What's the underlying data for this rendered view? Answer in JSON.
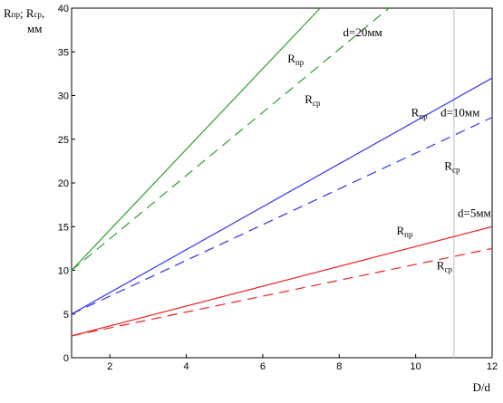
{
  "chart_data": {
    "type": "line",
    "ylabel_line1": "Rпр; Rср,",
    "ylabel_line2": "мм",
    "ylabel_parts": [
      {
        "text": "R",
        "sub": false
      },
      {
        "text": "пр",
        "sub": true
      },
      {
        "text": "; R",
        "sub": false
      },
      {
        "text": "ср",
        "sub": true
      },
      {
        "text": ",",
        "sub": false
      }
    ],
    "xlabel": "D/d",
    "xlim": [
      1,
      12
    ],
    "ylim": [
      0,
      40
    ],
    "xticks": [
      2,
      4,
      6,
      8,
      10,
      12
    ],
    "yticks": [
      0,
      5,
      10,
      15,
      20,
      25,
      30,
      35,
      40
    ],
    "grid": false,
    "reference_line_x": 11,
    "colors": {
      "green": "#2ca02c",
      "blue": "#3333ee",
      "red": "#ee2222",
      "reference": "#c8c8c8",
      "axis": "#000000"
    },
    "series": [
      {
        "group": "d=20мм",
        "kind": "пр",
        "color": "#2ca02c",
        "dash": false,
        "x": [
          1,
          7.5
        ],
        "y": [
          10,
          40
        ]
      },
      {
        "group": "d=20мм",
        "kind": "ср",
        "color": "#2ca02c",
        "dash": true,
        "x": [
          1,
          9.3
        ],
        "y": [
          10,
          40
        ]
      },
      {
        "group": "d=10мм",
        "kind": "пр",
        "color": "#3333ee",
        "dash": false,
        "x": [
          1,
          12
        ],
        "y": [
          5,
          32
        ]
      },
      {
        "group": "d=10мм",
        "kind": "ср",
        "color": "#3333ee",
        "dash": true,
        "x": [
          1,
          12
        ],
        "y": [
          5,
          27.5
        ]
      },
      {
        "group": "d=5мм",
        "kind": "пр",
        "color": "#ee2222",
        "dash": false,
        "x": [
          1,
          12
        ],
        "y": [
          2.5,
          15
        ]
      },
      {
        "group": "d=5мм",
        "kind": "ср",
        "color": "#ee2222",
        "dash": true,
        "x": [
          1,
          12
        ],
        "y": [
          2.5,
          12.5
        ]
      }
    ],
    "annotations": [
      {
        "kind": "group",
        "text": "d=20мм",
        "x": 8.1,
        "y": 36.8
      },
      {
        "kind": "series",
        "main": "R",
        "sub": "пр",
        "x": 6.65,
        "y": 33.8
      },
      {
        "kind": "series",
        "main": "R",
        "sub": "ср",
        "x": 7.1,
        "y": 29.1
      },
      {
        "kind": "group",
        "text": "d=10мм",
        "x": 10.65,
        "y": 27.6
      },
      {
        "kind": "series",
        "main": "R",
        "sub": "пр",
        "x": 9.88,
        "y": 27.6
      },
      {
        "kind": "series",
        "main": "R",
        "sub": "ср",
        "x": 10.75,
        "y": 21.5
      },
      {
        "kind": "group",
        "text": "d=5мм",
        "x": 11.1,
        "y": 16.1
      },
      {
        "kind": "series",
        "main": "R",
        "sub": "пр",
        "x": 9.5,
        "y": 14.1
      },
      {
        "kind": "series",
        "main": "R",
        "sub": "ср",
        "x": 10.55,
        "y": 10.1
      }
    ]
  }
}
